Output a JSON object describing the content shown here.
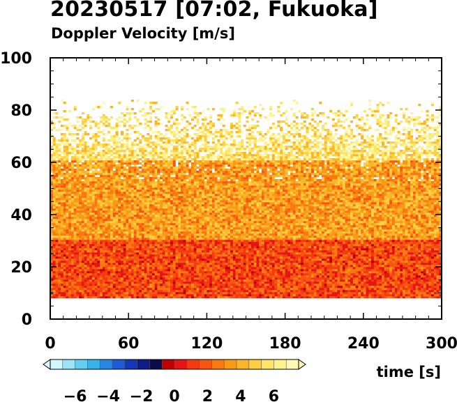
{
  "chart_data": {
    "type": "heatmap",
    "title": "20230517 [07:02, Fukuoka]",
    "subtitle": "Doppler Velocity [m/s]",
    "xlabel": "time [s]",
    "ylabel": "",
    "xlim": [
      0,
      300
    ],
    "ylim": [
      0,
      100
    ],
    "x_ticks": [
      "0",
      "60",
      "120",
      "180",
      "240",
      "300"
    ],
    "y_ticks": [
      "0",
      "20",
      "40",
      "60",
      "80",
      "100"
    ],
    "data_height_range": [
      8,
      88
    ],
    "data_time_range": [
      0,
      300
    ],
    "dense_echo_top": 60,
    "grid": false,
    "colorbar": {
      "range": [
        -7.5,
        7.5
      ],
      "tick_labels": [
        "−6",
        "−4",
        "−2",
        "0",
        "2",
        "4",
        "6"
      ],
      "tick_values": [
        -6,
        -4,
        -2,
        0,
        2,
        4,
        6
      ],
      "colors": [
        "#d4f6ff",
        "#9fe3f7",
        "#64cdf0",
        "#38b2ec",
        "#2a86e6",
        "#1f5bd6",
        "#1436b8",
        "#101c8a",
        "#0b0b4a",
        "#c00000",
        "#e51515",
        "#f33a10",
        "#f6560f",
        "#f87812",
        "#f99a16",
        "#fbb52a",
        "#fcd042",
        "#fde566",
        "#fdf28c",
        "#fef8b4"
      ]
    },
    "values_description_rows": [
      {
        "height_range": [
          8,
          30
        ],
        "dominant_velocity": 1.5
      },
      {
        "height_range": [
          30,
          60
        ],
        "dominant_velocity": 3.5
      },
      {
        "height_range": [
          60,
          88
        ],
        "dominant_velocity": 5.5
      }
    ]
  }
}
